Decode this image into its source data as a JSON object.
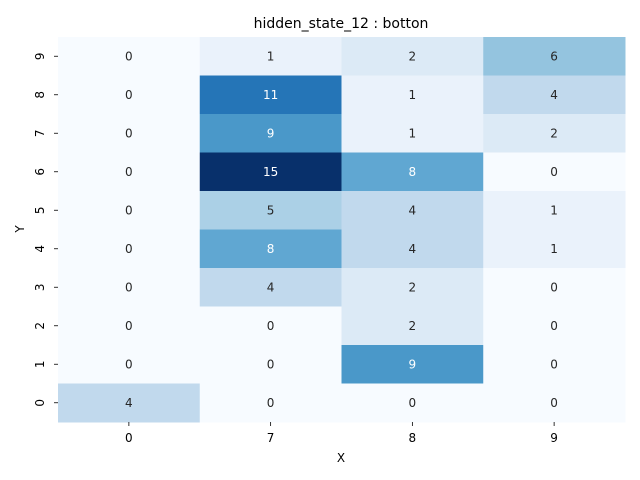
{
  "chart_data": {
    "type": "heatmap",
    "title": "hidden_state_12 : botton",
    "xlabel": "X",
    "ylabel": "Y",
    "x_categories": [
      "0",
      "7",
      "8",
      "9"
    ],
    "y_categories": [
      "9",
      "8",
      "7",
      "6",
      "5",
      "4",
      "3",
      "2",
      "1",
      "0"
    ],
    "values": [
      [
        0,
        1,
        2,
        6
      ],
      [
        0,
        11,
        1,
        4
      ],
      [
        0,
        9,
        1,
        2
      ],
      [
        0,
        15,
        8,
        0
      ],
      [
        0,
        5,
        4,
        1
      ],
      [
        0,
        8,
        4,
        1
      ],
      [
        0,
        4,
        2,
        0
      ],
      [
        0,
        0,
        2,
        0
      ],
      [
        0,
        0,
        9,
        0
      ],
      [
        4,
        0,
        0,
        0
      ]
    ],
    "value_range": [
      0,
      15
    ],
    "colormap": "Blues",
    "colorbar": false,
    "annotated": true
  }
}
